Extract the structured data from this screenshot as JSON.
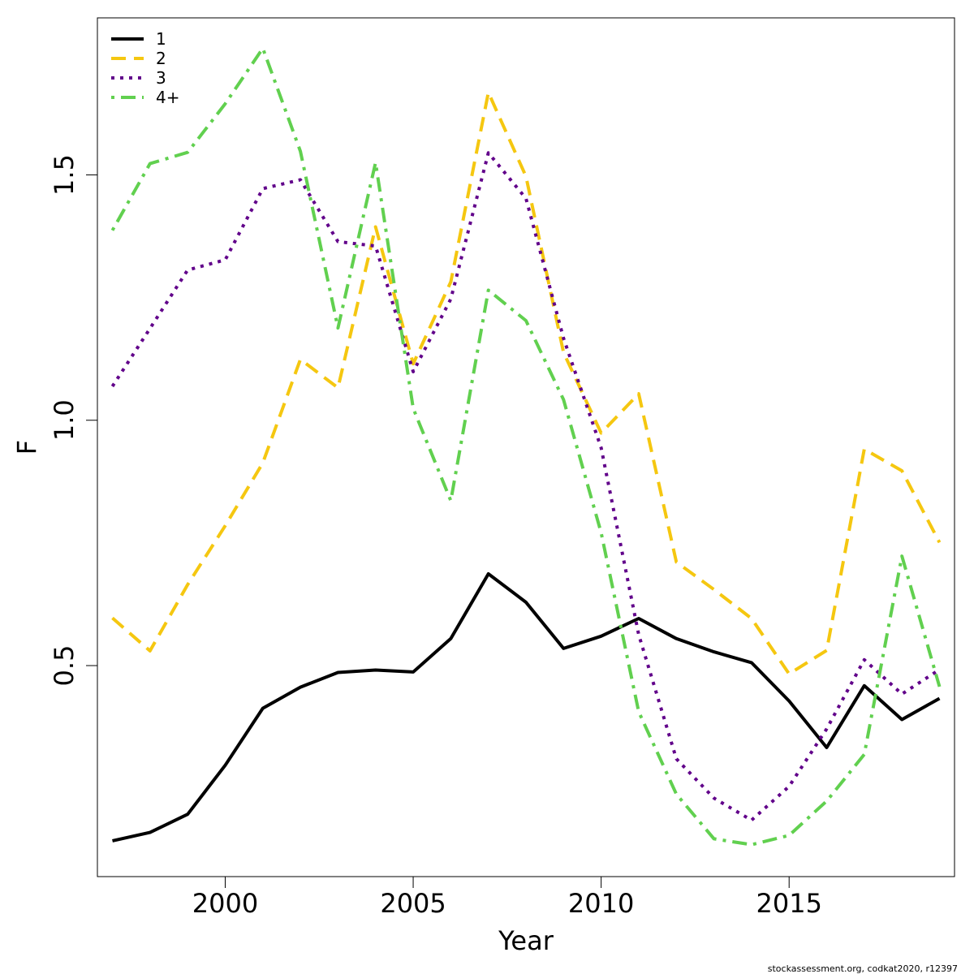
{
  "chart_data": {
    "type": "line",
    "xlabel": "Year",
    "ylabel": "F",
    "xlim": [
      1996.6,
      2019.4
    ],
    "ylim": [
      0.07,
      1.82
    ],
    "x_ticks": [
      2000,
      2005,
      2010,
      2015
    ],
    "x_tick_labels": [
      "2000",
      "2005",
      "2010",
      "2015"
    ],
    "y_ticks": [
      0.5,
      1.0,
      1.5
    ],
    "y_tick_labels": [
      "0.5",
      "1.0",
      "1.5"
    ],
    "grid": false,
    "legend_position": "top-left",
    "x": [
      1997,
      1998,
      1999,
      2000,
      2001,
      2002,
      2003,
      2004,
      2005,
      2006,
      2007,
      2008,
      2009,
      2010,
      2011,
      2012,
      2013,
      2014,
      2015,
      2016,
      2017,
      2018,
      2019
    ],
    "series": [
      {
        "name": "1",
        "color": "#000000",
        "dash": "solid",
        "values": [
          0.143,
          0.16,
          0.197,
          0.297,
          0.413,
          0.456,
          0.486,
          0.491,
          0.487,
          0.555,
          0.687,
          0.629,
          0.535,
          0.56,
          0.596,
          0.555,
          0.528,
          0.506,
          0.428,
          0.333,
          0.459,
          0.39,
          0.433
        ]
      },
      {
        "name": "2",
        "color": "#F5C710",
        "dash": "dashed",
        "values": [
          0.597,
          0.53,
          0.665,
          0.785,
          0.913,
          1.124,
          1.066,
          1.394,
          1.115,
          1.282,
          1.668,
          1.497,
          1.138,
          0.974,
          1.054,
          0.711,
          0.655,
          0.596,
          0.483,
          0.531,
          0.941,
          0.897,
          0.751
        ]
      },
      {
        "name": "3",
        "color": "#61008A",
        "dash": "dotted",
        "values": [
          1.069,
          1.187,
          1.306,
          1.327,
          1.472,
          1.49,
          1.364,
          1.355,
          1.099,
          1.247,
          1.545,
          1.452,
          1.167,
          0.944,
          0.563,
          0.31,
          0.23,
          0.185,
          0.254,
          0.371,
          0.512,
          0.442,
          0.492
        ]
      },
      {
        "name": "4+",
        "color": "#61D04F",
        "dash": "dotdash",
        "values": [
          1.387,
          1.523,
          1.546,
          1.645,
          1.758,
          1.548,
          1.188,
          1.525,
          1.024,
          0.836,
          1.265,
          1.203,
          1.042,
          0.771,
          0.406,
          0.238,
          0.147,
          0.135,
          0.154,
          0.224,
          0.319,
          0.723,
          0.457
        ]
      }
    ]
  },
  "footer": "stockassessment.org, codkat2020, r12397"
}
